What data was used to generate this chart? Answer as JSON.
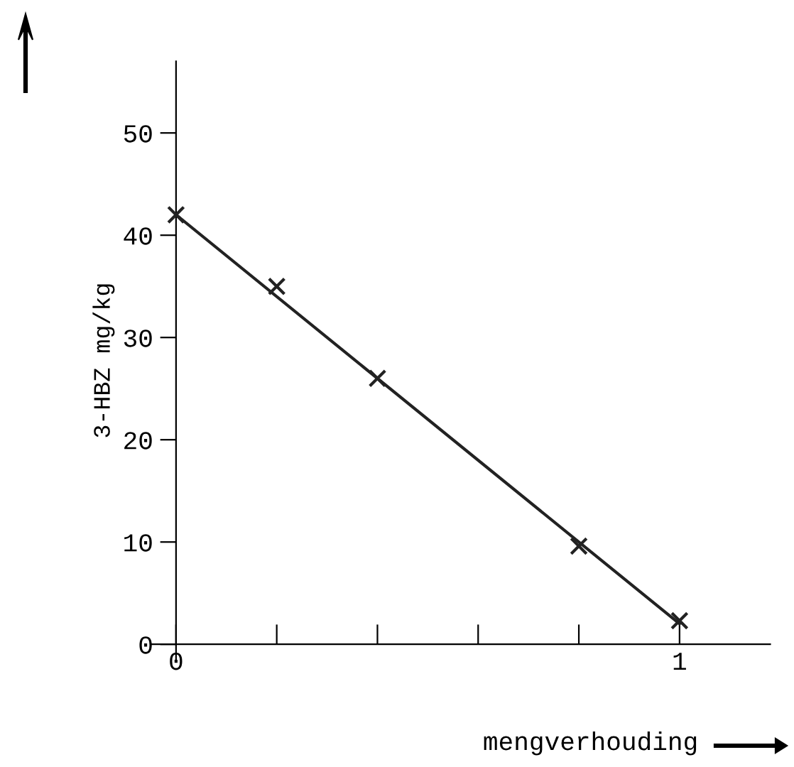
{
  "chart_data": {
    "type": "scatter",
    "xlabel": "mengverhouding",
    "ylabel": "3-HBZ mg/kg",
    "x": [
      0,
      0.2,
      0.4,
      0.8,
      1
    ],
    "series": [
      {
        "color": "#222222",
        "values": [
          42,
          35,
          26,
          9.6,
          2.3
        ],
        "marker": "cross"
      },
      {
        "type": "line",
        "color": "#222222",
        "x": [
          0,
          1
        ],
        "values": [
          42,
          2
        ]
      }
    ],
    "xlim": [
      -0.05,
      1.18
    ],
    "ylim": [
      -1.5,
      57
    ],
    "xticks": [
      0,
      {
        "value": 0.2,
        "label": null
      },
      {
        "value": 0.4,
        "label": null
      },
      {
        "value": 0.6,
        "label": null
      },
      {
        "value": 0.8,
        "label": null
      },
      1
    ],
    "yticks": [
      0,
      10,
      20,
      30,
      40,
      50
    ],
    "grid": false,
    "legend": false
  }
}
